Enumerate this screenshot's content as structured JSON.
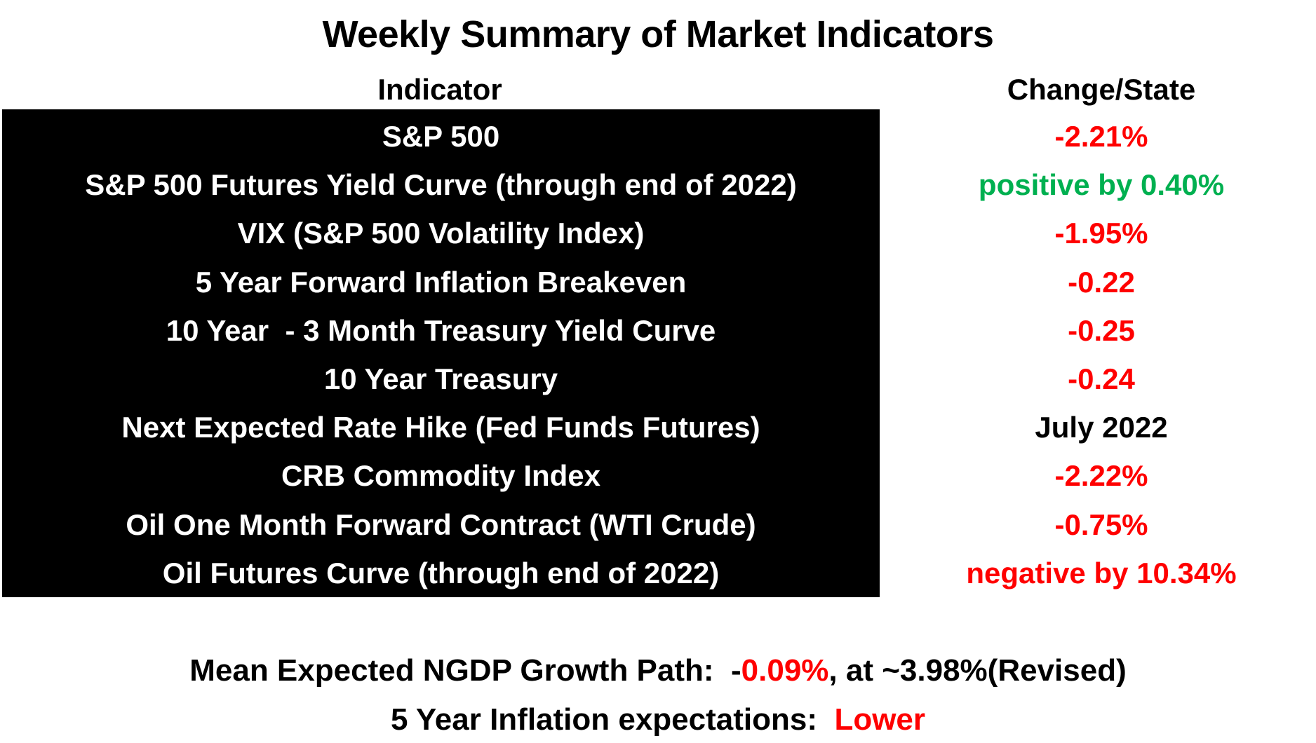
{
  "title": "Weekly Summary of Market Indicators",
  "headers": {
    "indicator": "Indicator",
    "change_state": "Change/State"
  },
  "colors": {
    "negative": "#ff0000",
    "positive": "#00b050",
    "neutral": "#000000",
    "panel": "#000000"
  },
  "rows": [
    {
      "indicator": "S&P 500",
      "value": "-2.21%",
      "tone": "negative"
    },
    {
      "indicator": "S&P 500 Futures Yield Curve (through end of 2022)",
      "value": "positive by 0.40%",
      "tone": "positive"
    },
    {
      "indicator": "VIX (S&P 500 Volatility Index)",
      "value": "-1.95%",
      "tone": "negative"
    },
    {
      "indicator": "5 Year Forward Inflation Breakeven",
      "value": "-0.22",
      "tone": "negative"
    },
    {
      "indicator": "10 Year  - 3 Month Treasury Yield Curve",
      "value": "-0.25",
      "tone": "negative"
    },
    {
      "indicator": "10 Year Treasury",
      "value": "-0.24",
      "tone": "negative"
    },
    {
      "indicator": "Next Expected Rate Hike (Fed Funds Futures)",
      "value": "July 2022",
      "tone": "neutral"
    },
    {
      "indicator": "CRB Commodity Index",
      "value": "-2.22%",
      "tone": "negative"
    },
    {
      "indicator": "Oil One Month Forward Contract (WTI Crude)",
      "value": "-0.75%",
      "tone": "negative"
    },
    {
      "indicator": "Oil Futures Curve (through end of 2022)",
      "value": "negative by 10.34%",
      "tone": "negative"
    }
  ],
  "footer": {
    "ngdp_prefix": "Mean Expected NGDP Growth Path:  ",
    "ngdp_sign": "-",
    "ngdp_change": "0.09%",
    "ngdp_suffix": ", at ~3.98%(Revised)",
    "inflation_prefix": "5 Year Inflation expectations:  ",
    "inflation_value": "Lower"
  }
}
